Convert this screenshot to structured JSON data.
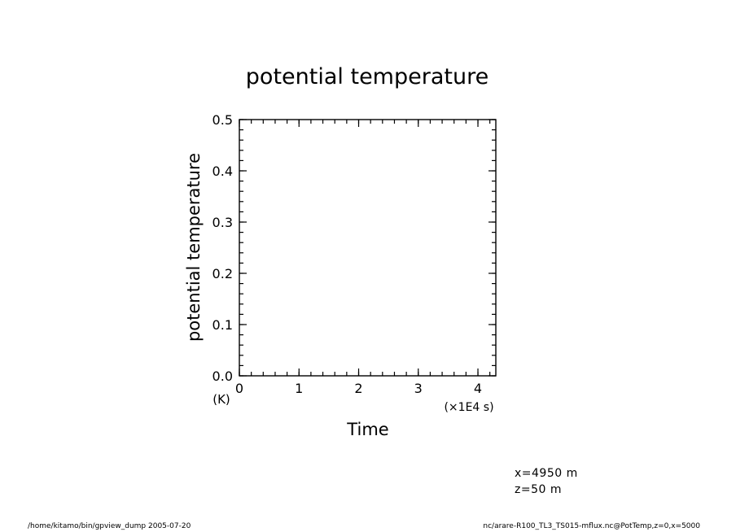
{
  "chart_data": {
    "type": "line",
    "title": "potential temperature",
    "xlabel": "Time",
    "ylabel": "potential temperature",
    "y_unit": "(K)",
    "x_scale_note": "(×1E4 s)",
    "xlim": [
      0,
      4.3
    ],
    "ylim": [
      0.0,
      0.5
    ],
    "x_ticks": [
      0,
      1,
      2,
      3,
      4
    ],
    "x_tick_labels": [
      "0",
      "1",
      "2",
      "3",
      "4"
    ],
    "y_ticks": [
      0.0,
      0.1,
      0.2,
      0.3,
      0.4,
      0.5
    ],
    "y_tick_labels": [
      "0.0",
      "0.1",
      "0.2",
      "0.3",
      "0.4",
      "0.5"
    ],
    "x_minor_step": 0.2,
    "y_minor_step": 0.02,
    "grid": false,
    "legend": "none",
    "series": []
  },
  "annotations": {
    "position_x": "x=4950  m",
    "position_z": "z=50  m"
  },
  "footer": {
    "left": "/home/kitamo/bin/gpview_dump   2005-07-20",
    "right": "nc/arare-R100_TL3_TS015-mflux.nc@PotTemp,z=0,x=5000"
  }
}
